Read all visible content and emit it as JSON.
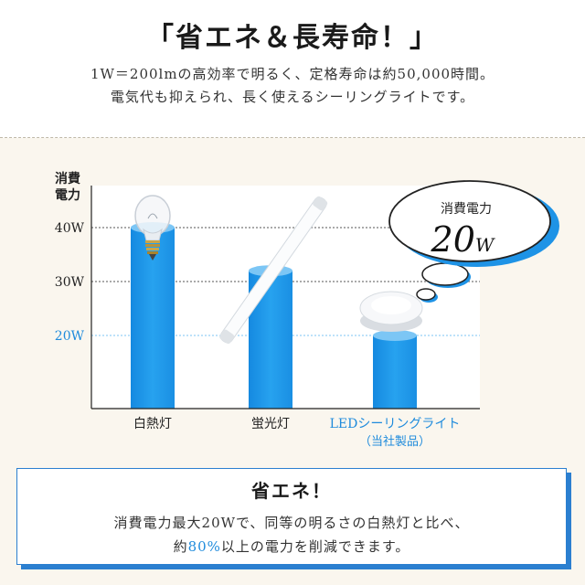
{
  "header": {
    "title": "「省エネ＆長寿命！」",
    "line1": "1W＝200lmの高効率で明るく、定格寿命は約50,000時間。",
    "line2": "電気代も抑えられ、長く使えるシーリングライトです。"
  },
  "chart_data": {
    "type": "bar",
    "ylabel": "消費\n電力",
    "yticks": [
      "40W",
      "30W",
      "20W"
    ],
    "categories": [
      "白熱灯",
      "蛍光灯",
      "LEDシーリングライト"
    ],
    "category_note": "（当社製品）",
    "values": [
      40,
      32,
      20
    ],
    "unit": "W",
    "bubble": {
      "label": "消費電力",
      "value": "20",
      "unit": "W"
    },
    "colors": {
      "bar": "#1e93e6",
      "bar_light": "#7cc6f5",
      "highlight": "#1f8bdc"
    }
  },
  "summary": {
    "title": "省エネ！",
    "line1": "消費電力最大20Wで、同等の明るさの白熱灯と比べ、",
    "line2_prefix": "約",
    "line2_highlight": "80%",
    "line2_suffix": "以上の電力を削減できます。"
  }
}
